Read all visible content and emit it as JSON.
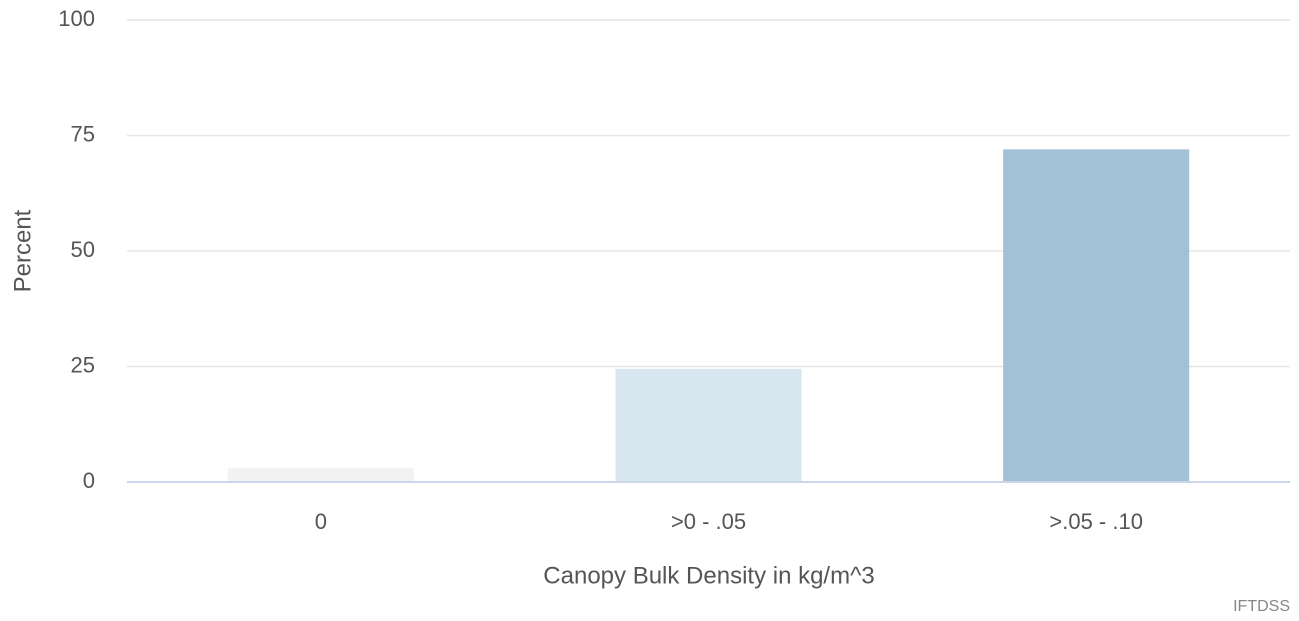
{
  "chart_data": {
    "type": "bar",
    "categories": [
      "0",
      ">0 - .05",
      ">.05 - .10"
    ],
    "values": [
      3,
      24.5,
      72
    ],
    "colors": [
      "#f2f2f2",
      "#d8e6f0",
      "#a2c0d6"
    ],
    "xlabel": "Canopy Bulk Density in kg/m^3",
    "ylabel": "Percent",
    "credit": "IFTDSS",
    "ylim": [
      0,
      100
    ],
    "yticks": [
      0,
      25,
      50,
      75,
      100
    ],
    "grid": true
  }
}
